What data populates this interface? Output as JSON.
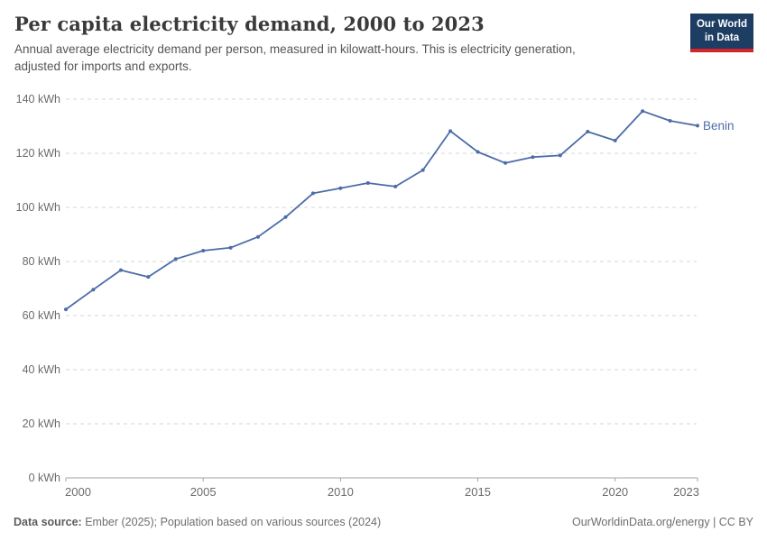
{
  "header": {
    "title": "Per capita electricity demand, 2000 to 2023",
    "subtitle_line1": "Annual average electricity demand per person, measured in kilowatt-hours. This is electricity generation,",
    "subtitle_line2": "adjusted for imports and exports.",
    "logo": {
      "line1": "Our World",
      "line2": "in Data",
      "bg_color": "#1d3d63",
      "bar_color": "#d0262c"
    }
  },
  "chart_data": {
    "type": "line",
    "title": "Per capita electricity demand, 2000 to 2023",
    "x": [
      2000,
      2001,
      2002,
      2003,
      2004,
      2005,
      2006,
      2007,
      2008,
      2009,
      2010,
      2011,
      2012,
      2013,
      2014,
      2015,
      2016,
      2017,
      2018,
      2019,
      2020,
      2021,
      2022,
      2023
    ],
    "series": [
      {
        "name": "Benin",
        "color": "#4c6ca8",
        "values": [
          62.3,
          69.6,
          76.8,
          74.3,
          80.9,
          84.0,
          85.1,
          89.1,
          96.4,
          105.2,
          107.1,
          109.0,
          107.7,
          113.8,
          128.2,
          120.5,
          116.4,
          118.6,
          119.2,
          128.0,
          124.7,
          135.6,
          132.0,
          130.2
        ]
      }
    ],
    "end_label": "Benin",
    "xlim": [
      2000,
      2023
    ],
    "ylim": [
      0,
      140
    ],
    "x_ticks": [
      2000,
      2005,
      2010,
      2015,
      2020,
      2023
    ],
    "x_tick_labels": [
      "2000",
      "2005",
      "2010",
      "2015",
      "2020",
      "2023"
    ],
    "y_ticks": [
      0,
      20,
      40,
      60,
      80,
      100,
      120,
      140
    ],
    "y_tick_labels": [
      "0 kWh",
      "20 kWh",
      "40 kWh",
      "60 kWh",
      "80 kWh",
      "100 kWh",
      "120 kWh",
      "140 kWh"
    ],
    "grid": "horizontal-dashed",
    "legend_position": "end-of-line",
    "axis_color": "#a3a3a3",
    "grid_color": "#d6d6d6",
    "tick_label_color": "#6b6b6b"
  },
  "footer": {
    "source_label": "Data source:",
    "source_text": " Ember (2025); Population based on various sources (2024)",
    "right_text": "OurWorldinData.org/energy | CC BY"
  }
}
